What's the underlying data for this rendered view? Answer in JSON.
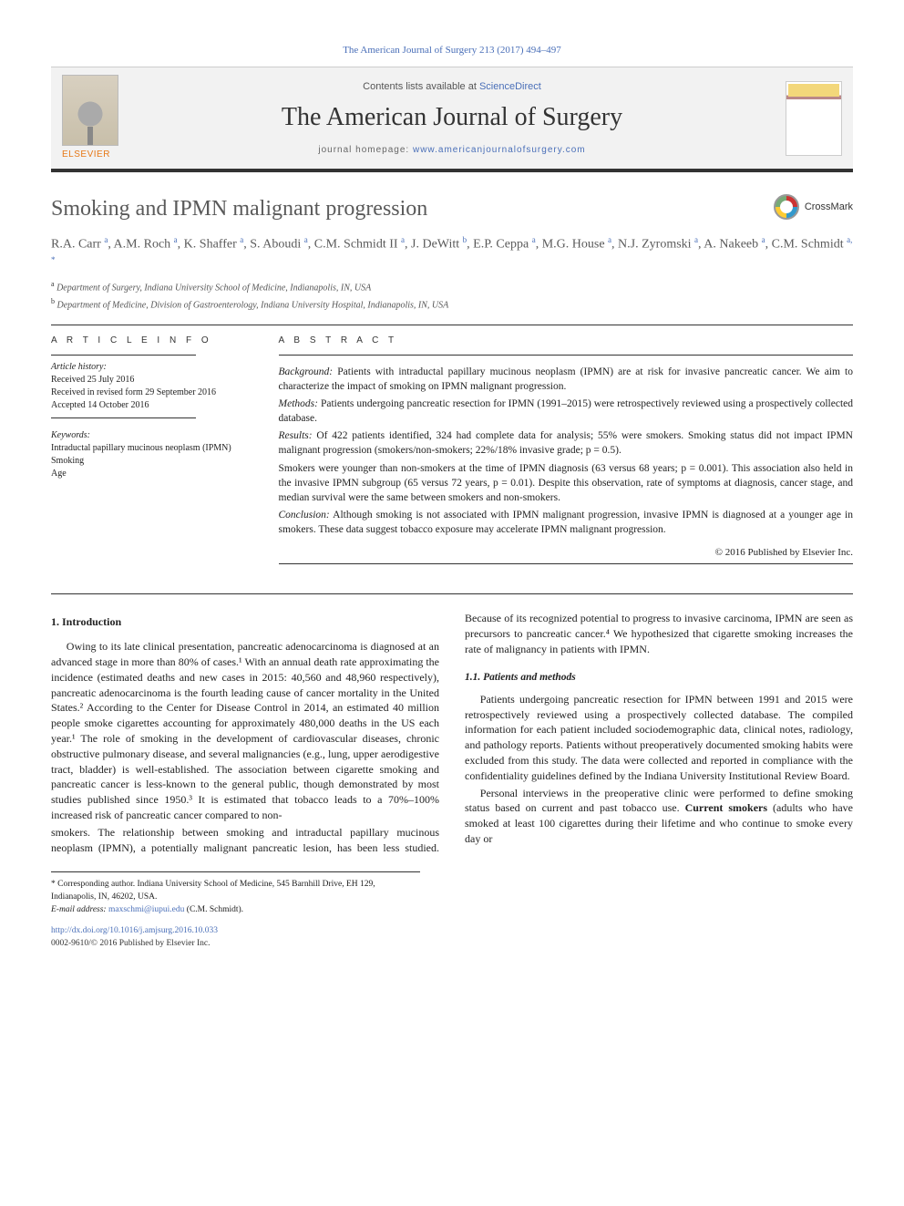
{
  "header": {
    "citation": "The American Journal of Surgery 213 (2017) 494–497",
    "contents_prefix": "Contents lists available at ",
    "contents_link": "ScienceDirect",
    "journal_title": "The American Journal of Surgery",
    "homepage_prefix": "journal homepage: ",
    "homepage_url": "www.americanjournalofsurgery.com",
    "publisher_logo": "ELSEVIER",
    "crossmark_label": "CrossMark"
  },
  "article": {
    "title": "Smoking and IPMN malignant progression",
    "authors_html": "R.A. Carr <sup>a</sup>, A.M. Roch <sup>a</sup>, K. Shaffer <sup>a</sup>, S. Aboudi <sup>a</sup>, C.M. Schmidt II <sup>a</sup>, J. DeWitt <sup>b</sup>, E.P. Ceppa <sup>a</sup>, M.G. House <sup>a</sup>, N.J. Zyromski <sup>a</sup>, A. Nakeeb <sup>a</sup>, C.M. Schmidt <sup>a, *</sup>",
    "affiliations": [
      {
        "marker": "a",
        "text": "Department of Surgery, Indiana University School of Medicine, Indianapolis, IN, USA"
      },
      {
        "marker": "b",
        "text": "Department of Medicine, Division of Gastroenterology, Indiana University Hospital, Indianapolis, IN, USA"
      }
    ]
  },
  "info": {
    "heading": "A R T I C L E  I N F O",
    "history_label": "Article history:",
    "received": "Received 25 July 2016",
    "revised": "Received in revised form 29 September 2016",
    "accepted": "Accepted 14 October 2016",
    "keywords_label": "Keywords:",
    "keywords": [
      "Intraductal papillary mucinous neoplasm (IPMN)",
      "Smoking",
      "Age"
    ]
  },
  "abstract": {
    "heading": "A B S T R A C T",
    "background_label": "Background:",
    "background": " Patients with intraductal papillary mucinous neoplasm (IPMN) are at risk for invasive pancreatic cancer. We aim to characterize the impact of smoking on IPMN malignant progression.",
    "methods_label": "Methods:",
    "methods": " Patients undergoing pancreatic resection for IPMN (1991–2015) were retrospectively reviewed using a prospectively collected database.",
    "results_label": "Results:",
    "results1": " Of 422 patients identified, 324 had complete data for analysis; 55% were smokers. Smoking status did not impact IPMN malignant progression (smokers/non-smokers; 22%/18% invasive grade; p = 0.5).",
    "results2": "Smokers were younger than non-smokers at the time of IPMN diagnosis (63 versus 68 years; p = 0.001). This association also held in the invasive IPMN subgroup (65 versus 72 years, p = 0.01). Despite this observation, rate of symptoms at diagnosis, cancer stage, and median survival were the same between smokers and non-smokers.",
    "conclusion_label": "Conclusion:",
    "conclusion": " Although smoking is not associated with IPMN malignant progression, invasive IPMN is diagnosed at a younger age in smokers. These data suggest tobacco exposure may accelerate IPMN malignant progression.",
    "copyright": "© 2016 Published by Elsevier Inc."
  },
  "body": {
    "s1_heading": "1. Introduction",
    "s1_p1": "Owing to its late clinical presentation, pancreatic adenocarcinoma is diagnosed at an advanced stage in more than 80% of cases.¹ With an annual death rate approximating the incidence (estimated deaths and new cases in 2015: 40,560 and 48,960 respectively), pancreatic adenocarcinoma is the fourth leading cause of cancer mortality in the United States.² According to the Center for Disease Control in 2014, an estimated 40 million people smoke cigarettes accounting for approximately 480,000 deaths in the US each year.¹ The role of smoking in the development of cardiovascular diseases, chronic obstructive pulmonary disease, and several malignancies (e.g., lung, upper aerodigestive tract, bladder) is well-established. The association between cigarette smoking and pancreatic cancer is less-known to the general public, though demonstrated by most studies published since 1950.³ It is estimated that tobacco leads to a 70%–100% increased risk of pancreatic cancer compared to non-",
    "s1_p2": "smokers. The relationship between smoking and intraductal papillary mucinous neoplasm (IPMN), a potentially malignant pancreatic lesion, has been less studied. Because of its recognized potential to progress to invasive carcinoma, IPMN are seen as precursors to pancreatic cancer.⁴ We hypothesized that cigarette smoking increases the rate of malignancy in patients with IPMN.",
    "s11_heading": "1.1. Patients and methods",
    "s11_p1": "Patients undergoing pancreatic resection for IPMN between 1991 and 2015 were retrospectively reviewed using a prospectively collected database. The compiled information for each patient included sociodemographic data, clinical notes, radiology, and pathology reports. Patients without preoperatively documented smoking habits were excluded from this study. The data were collected and reported in compliance with the confidentiality guidelines defined by the Indiana University Institutional Review Board.",
    "s11_p2_pre": "Personal interviews in the preoperative clinic were performed to define smoking status based on current and past tobacco use. ",
    "s11_p2_bold": "Current smokers",
    "s11_p2_post": " (adults who have smoked at least 100 cigarettes during their lifetime and who continue to smoke every day or"
  },
  "footnotes": {
    "corresp": "* Corresponding author. Indiana University School of Medicine, 545 Barnhill Drive, EH 129, Indianapolis, IN, 46202, USA.",
    "email_label": "E-mail address:",
    "email": "maxschmi@iupui.edu",
    "email_name": " (C.M. Schmidt)."
  },
  "bottom": {
    "doi": "http://dx.doi.org/10.1016/j.amjsurg.2016.10.033",
    "issn": "0002-9610/© 2016 Published by Elsevier Inc."
  },
  "colors": {
    "link": "#4a6fb8",
    "text": "#222222",
    "muted": "#5a5a5a",
    "orange": "#e67817",
    "rule": "#333333",
    "bg_masthead": "#f2f2f2"
  }
}
